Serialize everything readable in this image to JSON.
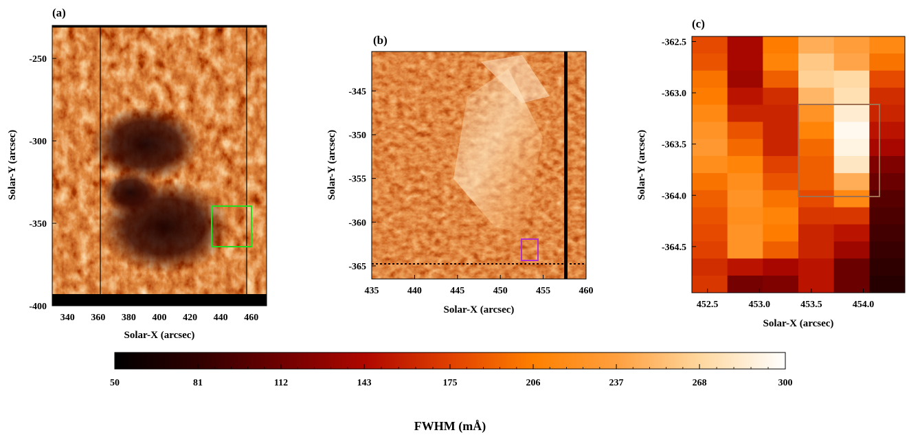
{
  "chart_data": [
    {
      "type": "heatmap",
      "panel_label": "(a)",
      "xlabel": "Solar-X (arcsec)",
      "ylabel": "Solar-Y (arcsec)",
      "xlim": [
        330,
        470
      ],
      "ylim": [
        -400,
        -230
      ],
      "xticks": [
        340,
        360,
        380,
        400,
        420,
        440,
        460
      ],
      "yticks": [
        -250,
        -300,
        -350,
        -400
      ],
      "annotations": [
        {
          "kind": "box",
          "color": "#22dd22",
          "x": [
            436,
            462
          ],
          "y": [
            -367,
            -341
          ]
        }
      ]
    },
    {
      "type": "heatmap",
      "panel_label": "(b)",
      "xlabel": "Solar-X (arcsec)",
      "ylabel": "Solar-Y (arcsec)",
      "xlim": [
        435,
        460
      ],
      "ylim": [
        -366.5,
        -340.5
      ],
      "xticks": [
        435,
        440,
        445,
        450,
        455,
        460
      ],
      "yticks": [
        -345,
        -350,
        -355,
        -360,
        -365
      ],
      "annotations": [
        {
          "kind": "box",
          "color": "#b030c8",
          "x": [
            452.9,
            454.6
          ],
          "y": [
            -365.2,
            -362.6
          ]
        }
      ]
    },
    {
      "type": "heatmap",
      "panel_label": "(c)",
      "xlabel": "Solar-X (arcsec)",
      "ylabel": "Solar-Y (arcsec)",
      "xlim": [
        452.35,
        454.4
      ],
      "ylim": [
        -364.95,
        -362.45
      ],
      "xticks": [
        "452.5",
        "453.0",
        "453.5",
        "454.0"
      ],
      "yticks": [
        "-362.5",
        "-363.0",
        "-363.5",
        "-364.0",
        "-364.5"
      ],
      "annotations": [
        {
          "kind": "box",
          "color": "#a07050",
          "x": [
            453.44,
            454.2
          ],
          "y": [
            -364.0,
            -363.1
          ]
        }
      ],
      "grid_cols": 6,
      "grid_rows": 15,
      "values": [
        [
          180,
          140,
          205,
          245,
          235,
          215
        ],
        [
          185,
          140,
          210,
          260,
          240,
          200
        ],
        [
          200,
          135,
          190,
          265,
          270,
          180
        ],
        [
          205,
          150,
          165,
          250,
          275,
          165
        ],
        [
          215,
          160,
          160,
          225,
          285,
          160
        ],
        [
          225,
          185,
          160,
          210,
          295,
          150
        ],
        [
          230,
          195,
          160,
          195,
          290,
          140
        ],
        [
          220,
          210,
          175,
          190,
          280,
          120
        ],
        [
          200,
          220,
          185,
          190,
          245,
          110
        ],
        [
          190,
          225,
          200,
          180,
          215,
          100
        ],
        [
          185,
          220,
          210,
          170,
          170,
          95
        ],
        [
          180,
          225,
          205,
          160,
          150,
          90
        ],
        [
          175,
          225,
          190,
          160,
          135,
          85
        ],
        [
          165,
          150,
          140,
          150,
          110,
          80
        ],
        [
          170,
          115,
          120,
          150,
          110,
          75
        ]
      ]
    },
    {
      "type": "colorbar",
      "label": "FWHM (mÅ)",
      "range": [
        50,
        300
      ],
      "ticks": [
        "50",
        "81",
        "112",
        "143",
        "175",
        "206",
        "237",
        "268",
        "300"
      ],
      "colormap": [
        "#000000",
        "#300000",
        "#700000",
        "#b00800",
        "#e04000",
        "#ff8000",
        "#ffa040",
        "#ffd8a0",
        "#ffffff"
      ]
    }
  ]
}
